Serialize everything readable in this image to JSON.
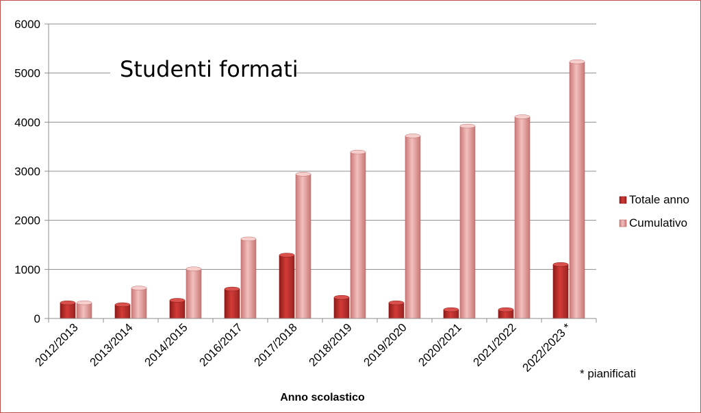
{
  "chart_data": {
    "type": "bar",
    "title": "Studenti formati",
    "xlabel": "Anno scolastico",
    "ylabel": "",
    "ylim": [
      0,
      6000
    ],
    "yticks": [
      0,
      1000,
      2000,
      3000,
      4000,
      5000,
      6000
    ],
    "grid": true,
    "legend_position": "right",
    "categories": [
      "2012/2013",
      "2013/2014",
      "2014/2015",
      "2016/2017",
      "2017/2018",
      "2018/2019",
      "2019/2020",
      "2020/2021",
      "2021/2022",
      "2022/2023 *"
    ],
    "series": [
      {
        "name": "Totale anno",
        "color": "#c0302d",
        "values": [
          320,
          280,
          370,
          600,
          1290,
          430,
          320,
          180,
          180,
          1100
        ]
      },
      {
        "name": "Cumulativo",
        "color": "#e6a3a1",
        "values": [
          320,
          620,
          1010,
          1620,
          2940,
          3390,
          3720,
          3920,
          4110,
          5230
        ]
      }
    ],
    "annotation": "* pianificati"
  }
}
